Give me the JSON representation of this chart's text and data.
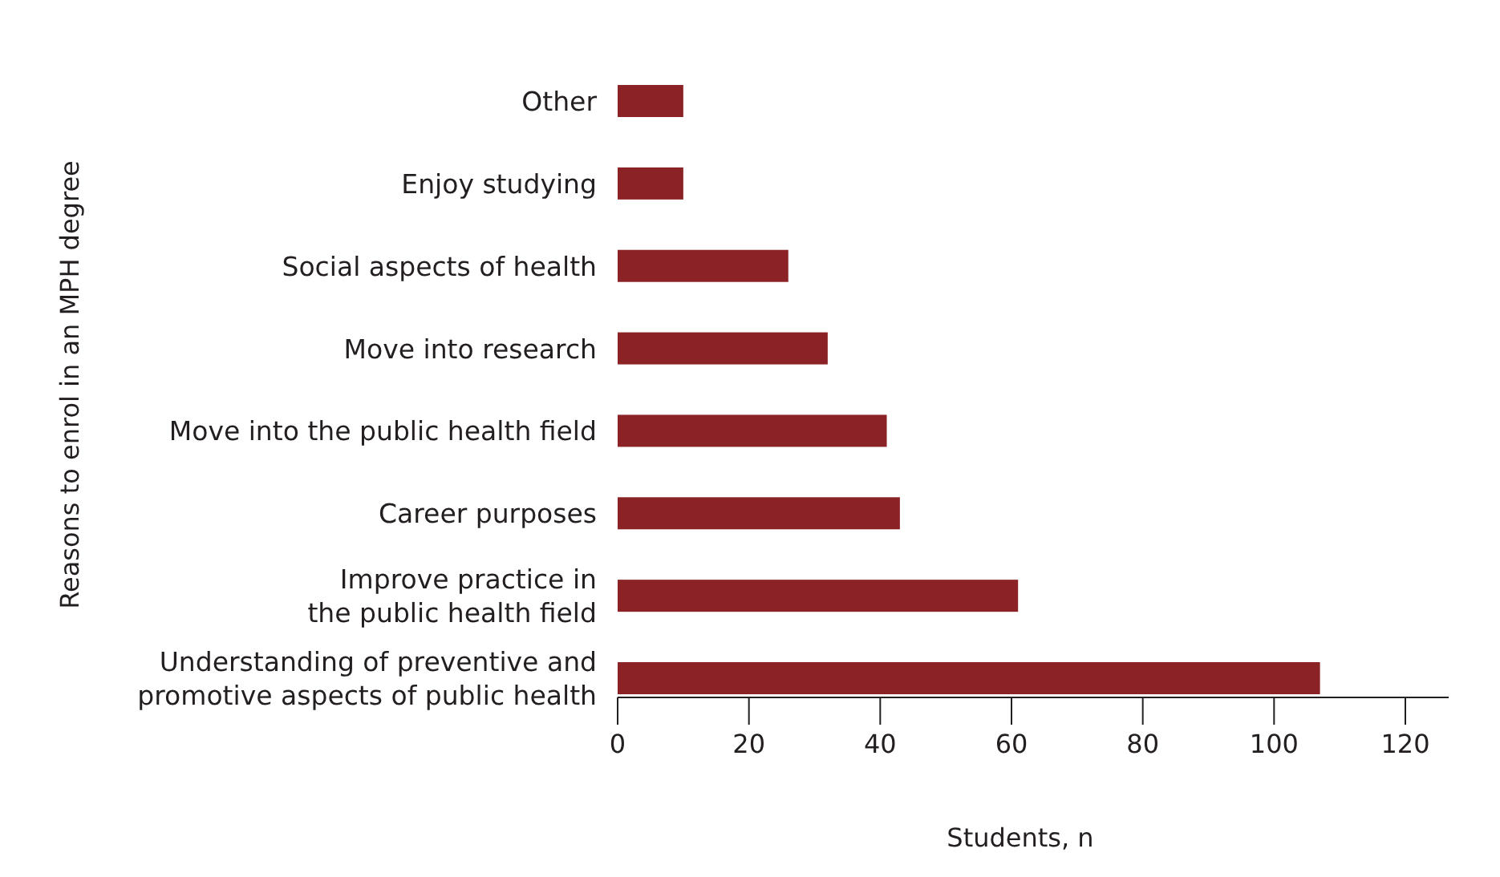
{
  "chart_data": {
    "type": "bar",
    "orientation": "horizontal",
    "xlabel": "Students, n",
    "ylabel": "Reasons to enrol in an MPH degree",
    "categories": [
      "Other",
      "Enjoy studying",
      "Social aspects of health",
      "Move into research",
      "Move into the public health field",
      "Career purposes",
      "Improve practice in\nthe public health field",
      "Understanding of preventive and\npromotive aspects of public health"
    ],
    "values": [
      10,
      10,
      26,
      32,
      41,
      43,
      61,
      107
    ],
    "color": "#8b2326",
    "xlim": [
      0,
      126.6
    ],
    "xticks": [
      0,
      20,
      40,
      60,
      80,
      100,
      120
    ]
  }
}
